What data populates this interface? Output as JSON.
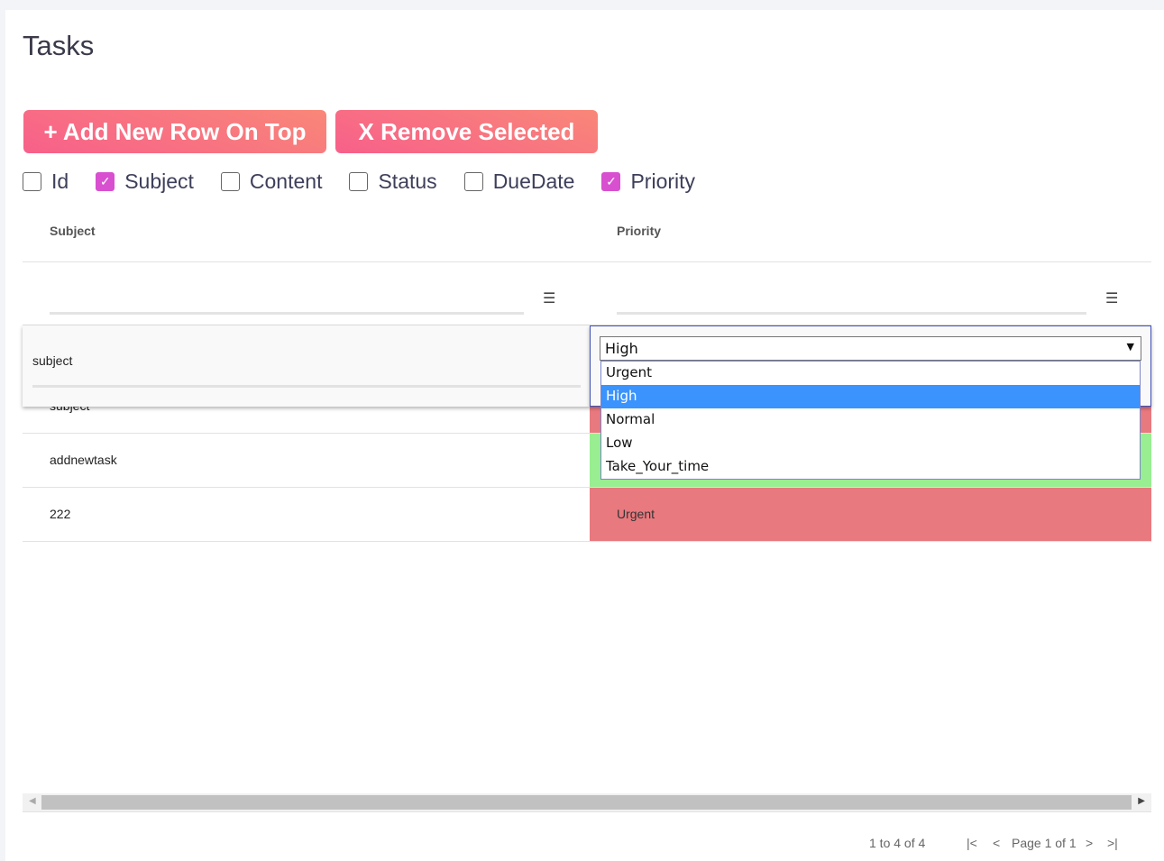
{
  "title": "Tasks",
  "buttons": {
    "add": "+ Add New Row On Top",
    "remove": "X Remove Selected"
  },
  "columns_toggle": [
    {
      "label": "Id",
      "checked": false
    },
    {
      "label": "Subject",
      "checked": true
    },
    {
      "label": "Content",
      "checked": false
    },
    {
      "label": "Status",
      "checked": false
    },
    {
      "label": "DueDate",
      "checked": false
    },
    {
      "label": "Priority",
      "checked": true
    }
  ],
  "grid": {
    "headers": [
      "Subject",
      "Priority"
    ],
    "editing_row": {
      "subject": "subject",
      "priority": "High"
    },
    "priority_options": [
      "Urgent",
      "High",
      "Normal",
      "Low",
      "Take_Your_time"
    ],
    "rows": [
      {
        "subject": "subject",
        "priority": "",
        "color": "#e8797e"
      },
      {
        "subject": "addnewtask",
        "priority": "",
        "color": "#98ee90"
      },
      {
        "subject": "222",
        "priority": "Urgent",
        "color": "#e8797e"
      }
    ]
  },
  "footer": {
    "summary": "1 to 4 of 4",
    "page": "Page 1 of 1"
  },
  "icons": {
    "filter": "filter-icon",
    "first": "first-page-icon",
    "prev": "prev-page-icon",
    "next": "next-page-icon",
    "last": "last-page-icon"
  }
}
